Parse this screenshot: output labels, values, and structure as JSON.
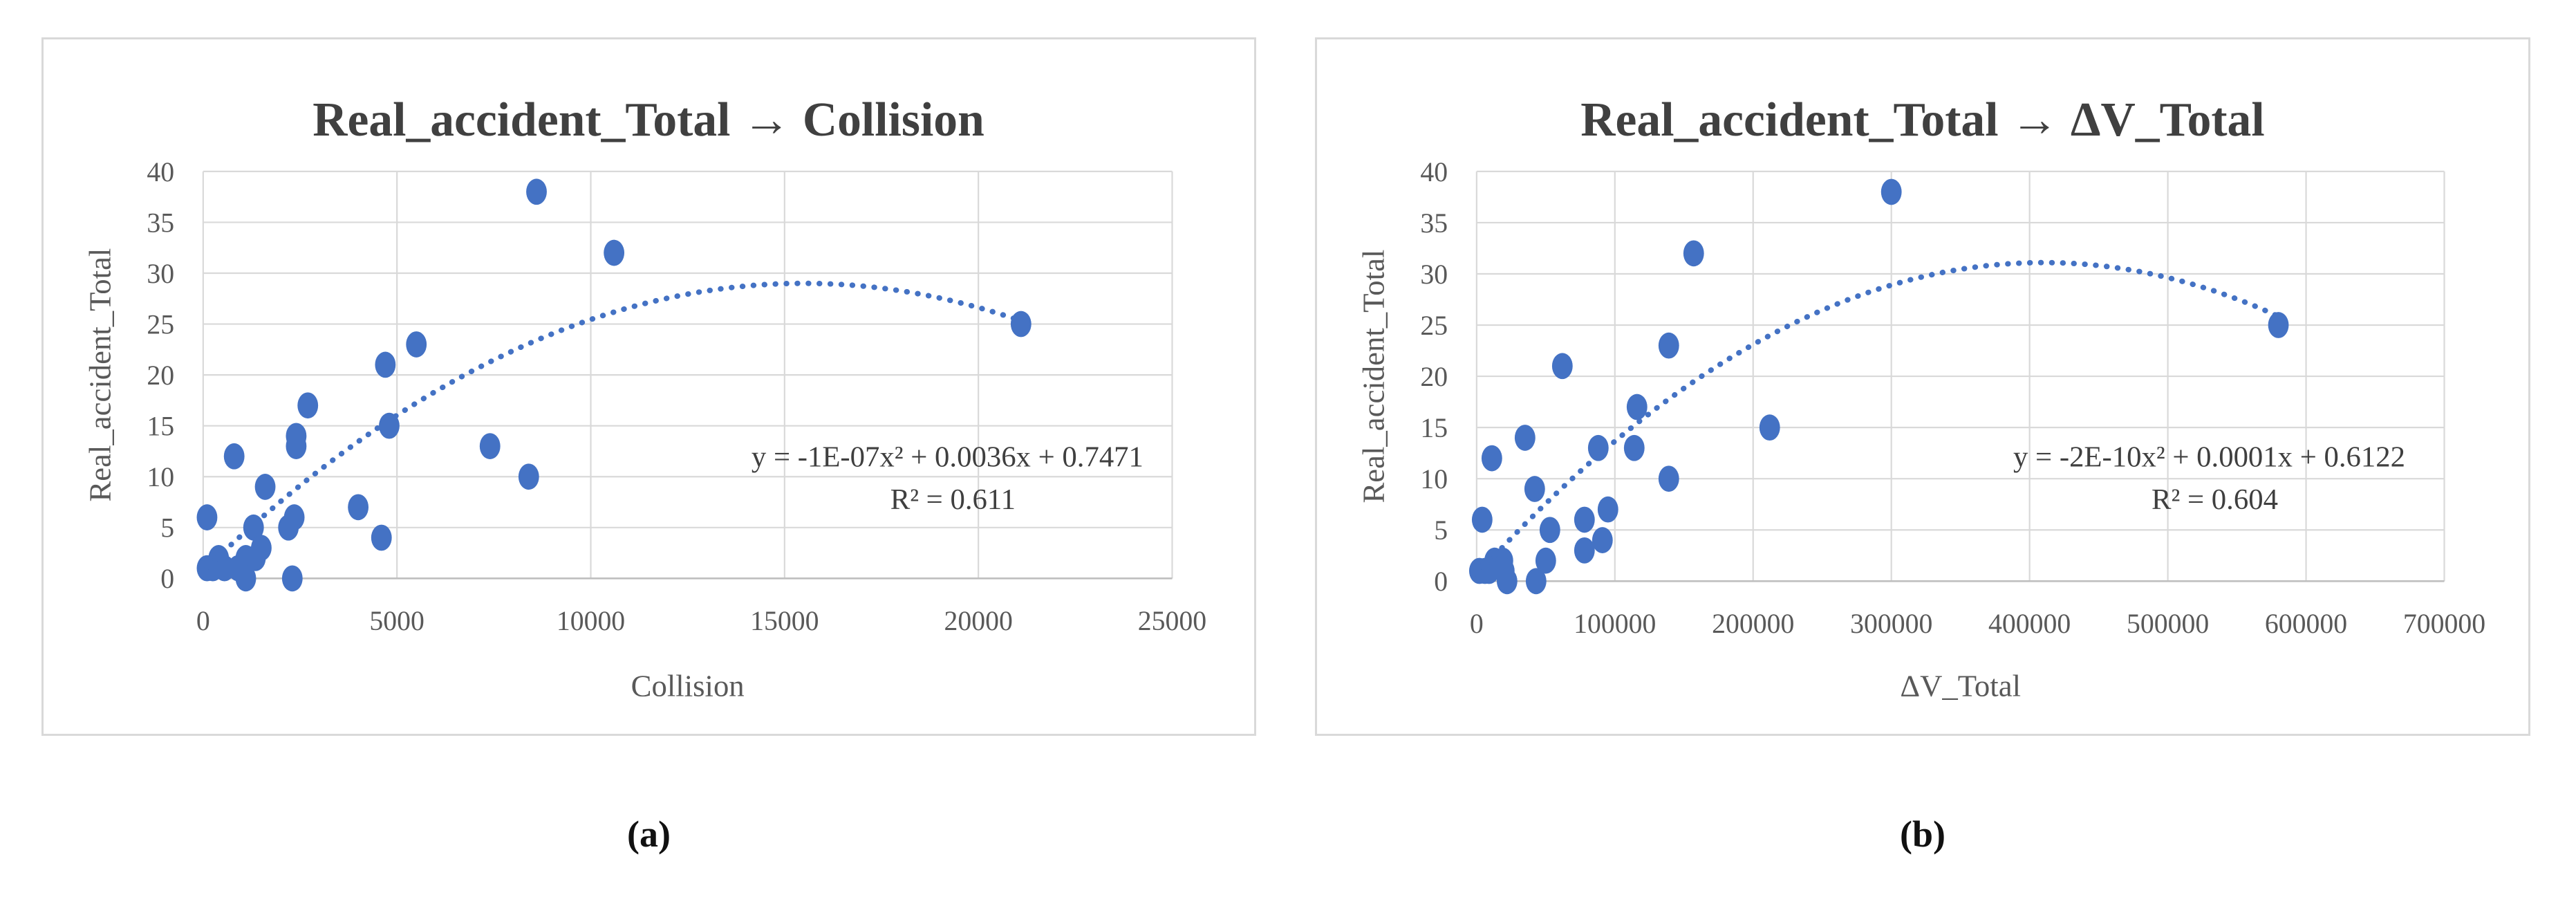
{
  "page": {
    "caption_a": "(a)",
    "caption_b": "(b)",
    "background": "#ffffff"
  },
  "chart_data": [
    {
      "type": "scatter",
      "panel": "a",
      "title": "Real_accident_Total → Collision",
      "xlabel": "Collision",
      "ylabel": "Real_accident_Total",
      "xlim": [
        0,
        25000
      ],
      "ylim": [
        0,
        40
      ],
      "x_ticks": [
        0,
        5000,
        10000,
        15000,
        20000,
        25000
      ],
      "y_ticks": [
        0,
        5,
        10,
        15,
        20,
        25,
        30,
        35,
        40
      ],
      "grid": true,
      "legend": "none",
      "marker_color": "#4472C4",
      "trend_color": "#4472C4",
      "grid_color": "#D9D9D9",
      "axis_color": "#BFBFBF",
      "text_color": "#595959",
      "points": [
        [
          8600,
          38
        ],
        [
          10600,
          32
        ],
        [
          21100,
          25
        ],
        [
          5500,
          23
        ],
        [
          4700,
          21
        ],
        [
          2700,
          17
        ],
        [
          4800,
          15
        ],
        [
          2400,
          14
        ],
        [
          2400,
          13
        ],
        [
          7400,
          13
        ],
        [
          800,
          12
        ],
        [
          8400,
          10
        ],
        [
          1600,
          9
        ],
        [
          4000,
          7
        ],
        [
          100,
          6
        ],
        [
          2350,
          6
        ],
        [
          1300,
          5
        ],
        [
          2200,
          5
        ],
        [
          4600,
          4
        ],
        [
          1500,
          3
        ],
        [
          400,
          2
        ],
        [
          1100,
          2
        ],
        [
          1350,
          2
        ],
        [
          100,
          1
        ],
        [
          250,
          1
        ],
        [
          550,
          1
        ],
        [
          900,
          1
        ],
        [
          1100,
          0
        ],
        [
          2300,
          0
        ]
      ],
      "trendline": {
        "style": "dotted",
        "shape": "polynomial-order-2",
        "equation": "y = -1E-07x² + 0.0036x + 0.7471",
        "r_squared": "R² = 0.611",
        "draw": {
          "a": -1.176e-07,
          "vertex_x": 15500,
          "vertex_y": 29,
          "x_start": 100,
          "x_end": 21100
        }
      }
    },
    {
      "type": "scatter",
      "panel": "b",
      "title": "Real_accident_Total → ΔV_Total",
      "xlabel": "ΔV_Total",
      "ylabel": "Real_accident_Total",
      "xlim": [
        0,
        700000
      ],
      "ylim": [
        0,
        40
      ],
      "x_ticks": [
        0,
        100000,
        200000,
        300000,
        400000,
        500000,
        600000,
        700000
      ],
      "y_ticks": [
        0,
        5,
        10,
        15,
        20,
        25,
        30,
        35,
        40
      ],
      "grid": true,
      "legend": "none",
      "marker_color": "#4472C4",
      "trend_color": "#4472C4",
      "grid_color": "#D9D9D9",
      "axis_color": "#BFBFBF",
      "text_color": "#595959",
      "points": [
        [
          300000,
          38
        ],
        [
          157000,
          32
        ],
        [
          580000,
          25
        ],
        [
          139000,
          23
        ],
        [
          62000,
          21
        ],
        [
          116000,
          17
        ],
        [
          212000,
          15
        ],
        [
          35000,
          14
        ],
        [
          88000,
          13
        ],
        [
          114000,
          13
        ],
        [
          11000,
          12
        ],
        [
          139000,
          10
        ],
        [
          42000,
          9
        ],
        [
          95000,
          7
        ],
        [
          4000,
          6
        ],
        [
          78000,
          6
        ],
        [
          53000,
          5
        ],
        [
          91000,
          4
        ],
        [
          78000,
          3
        ],
        [
          50000,
          2
        ],
        [
          13000,
          2
        ],
        [
          19000,
          2
        ],
        [
          2000,
          1
        ],
        [
          6000,
          1
        ],
        [
          9000,
          1
        ],
        [
          20000,
          1
        ],
        [
          22000,
          0
        ],
        [
          43000,
          0
        ]
      ],
      "trendline": {
        "style": "dotted",
        "shape": "polynomial-order-2",
        "equation": "y = -2E-10x² + 0.0001x + 0.6122",
        "r_squared": "R² = 0.604",
        "draw": {
          "a": -1.815e-10,
          "vertex_x": 410000,
          "vertex_y": 31.1,
          "x_start": 2000,
          "x_end": 580000
        }
      }
    }
  ]
}
